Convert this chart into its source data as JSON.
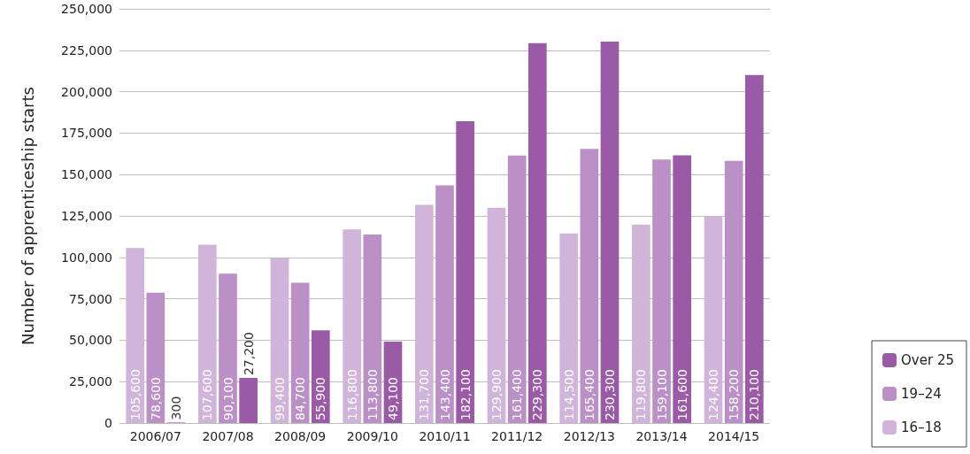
{
  "chart_data": {
    "type": "bar",
    "ylabel": "Number of apprenticeship starts",
    "categories": [
      "2006/07",
      "2007/08",
      "2008/09",
      "2009/10",
      "2010/11",
      "2011/12",
      "2012/13",
      "2013/14",
      "2014/15"
    ],
    "series": [
      {
        "name": "16–18",
        "color": "#d1b4da",
        "values": [
          105600,
          107600,
          99400,
          116800,
          131700,
          129900,
          114500,
          119800,
          124400
        ],
        "value_labels": [
          "105,600",
          "107,600",
          "99,400",
          "116,800",
          "131,700",
          "129,900",
          "114,500",
          "119,800",
          "124,400"
        ]
      },
      {
        "name": "19–24",
        "color": "#ba90c7",
        "values": [
          78600,
          90100,
          84700,
          113800,
          143400,
          161400,
          165400,
          159100,
          158200
        ],
        "value_labels": [
          "78,600",
          "90,100",
          "84,700",
          "113,800",
          "143,400",
          "161,400",
          "165,400",
          "159,100",
          "158,200"
        ]
      },
      {
        "name": "Over 25",
        "color": "#9a5aa6",
        "values": [
          300,
          27200,
          55900,
          49100,
          182100,
          229300,
          230300,
          161600,
          210100
        ],
        "value_labels": [
          "300",
          "27,200",
          "55,900",
          "49,100",
          "182,100",
          "229,300",
          "230,300",
          "161,600",
          "210,100"
        ]
      }
    ],
    "ylim": [
      0,
      250000
    ],
    "yticks": [
      0,
      {
        "value": 25000,
        "label": "25,000"
      },
      {
        "value": 50000,
        "label": "50,000"
      },
      {
        "value": 75000,
        "label": "75,000"
      },
      {
        "value": 100000,
        "label": "100,000"
      },
      {
        "value": 125000,
        "label": "125,000"
      },
      {
        "value": 150000,
        "label": "150,000"
      },
      {
        "value": 175000,
        "label": "175,000"
      },
      {
        "value": 200000,
        "label": "200,000"
      },
      {
        "value": 225000,
        "label": "225,000"
      },
      {
        "value": 250000,
        "label": "250,000"
      }
    ],
    "grid": "y",
    "legend": "bottom right"
  }
}
